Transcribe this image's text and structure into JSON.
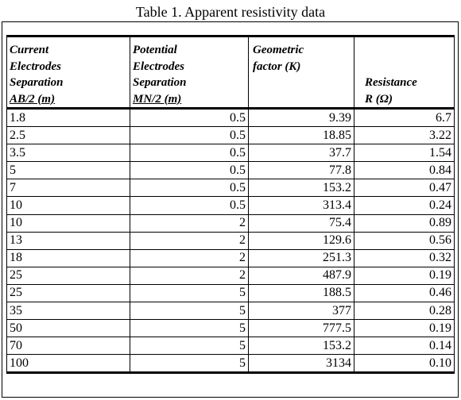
{
  "caption": "Table 1. Apparent resistivity data",
  "headers": [
    [
      "Current",
      "Electrodes",
      "Separation",
      "AB/2 (m)"
    ],
    [
      "Potential",
      "Electrodes",
      "Separation",
      "MN/2 (m)"
    ],
    [
      "Geometric",
      "factor (K)"
    ],
    [
      "Resistance",
      "R (Ω)"
    ]
  ],
  "rows": [
    [
      "1.8",
      "0.5",
      "9.39",
      "6.7"
    ],
    [
      "2.5",
      "0.5",
      "18.85",
      "3.22"
    ],
    [
      "3.5",
      "0.5",
      "37.7",
      "1.54"
    ],
    [
      "5",
      "0.5",
      "77.8",
      "0.84"
    ],
    [
      "7",
      "0.5",
      "153.2",
      "0.47"
    ],
    [
      "10",
      "0.5",
      "313.4",
      "0.24"
    ],
    [
      "10",
      "2",
      "75.4",
      "0.89"
    ],
    [
      "13",
      "2",
      "129.6",
      "0.56"
    ],
    [
      "18",
      "2",
      "251.3",
      "0.32"
    ],
    [
      "25",
      "2",
      "487.9",
      "0.19"
    ],
    [
      "25",
      "5",
      "188.5",
      "0.46"
    ],
    [
      "35",
      "5",
      "377",
      "0.28"
    ],
    [
      "50",
      "5",
      "777.5",
      "0.19"
    ],
    [
      "70",
      "5",
      "153.2",
      "0.14"
    ],
    [
      "100",
      "5",
      "3134",
      "0.10"
    ]
  ]
}
